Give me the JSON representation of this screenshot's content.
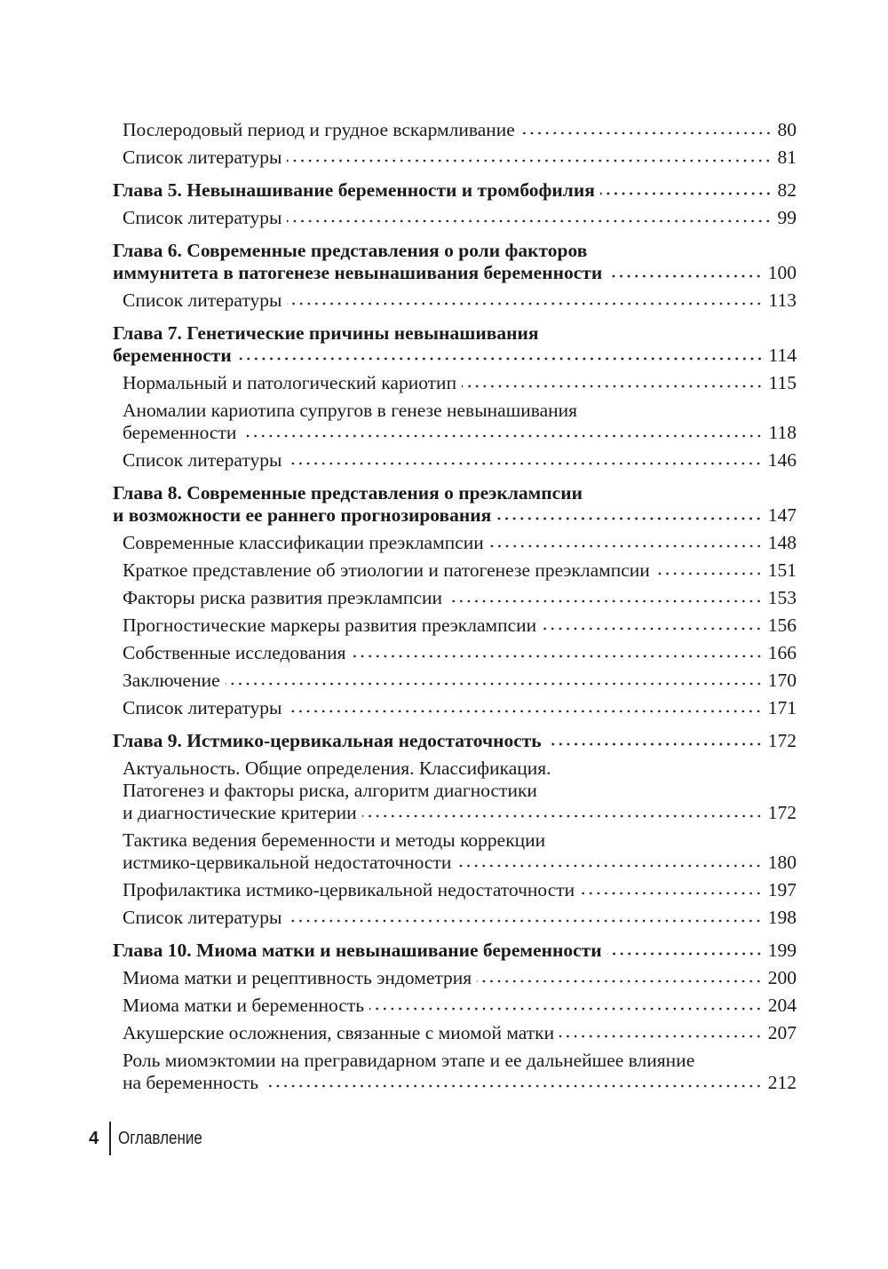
{
  "toc": [
    {
      "level": "sub",
      "lines": [
        "Послеродовый период и грудное вскармливание"
      ],
      "page": "80"
    },
    {
      "level": "sub",
      "lines": [
        "Список литературы"
      ],
      "page": "81"
    },
    {
      "level": "chapter",
      "lines": [
        "Глава 5. Невынашивание беременности и тромбофилия"
      ],
      "page": "82"
    },
    {
      "level": "sub",
      "lines": [
        "Список литературы"
      ],
      "page": "99"
    },
    {
      "level": "chapter",
      "lines": [
        "Глава 6. Современные представления о роли факторов",
        "иммунитета в патогенезе невынашивания беременности"
      ],
      "page": "100"
    },
    {
      "level": "sub",
      "lines": [
        "Список литературы"
      ],
      "page": "113"
    },
    {
      "level": "chapter",
      "lines": [
        "Глава 7. Генетические причины невынашивания",
        "беременности"
      ],
      "page": "114"
    },
    {
      "level": "sub",
      "lines": [
        "Нормальный и патологический кариотип"
      ],
      "page": "115"
    },
    {
      "level": "sub",
      "lines": [
        "Аномалии кариотипа супругов в генезе невынашивания",
        "беременности"
      ],
      "page": "118"
    },
    {
      "level": "sub",
      "lines": [
        "Список литературы"
      ],
      "page": "146"
    },
    {
      "level": "chapter",
      "lines": [
        "Глава 8. Современные представления о преэклампсии",
        "и возможности ее раннего прогнозирования"
      ],
      "page": "147"
    },
    {
      "level": "sub",
      "lines": [
        "Современные классификации преэклампсии"
      ],
      "page": "148"
    },
    {
      "level": "sub",
      "lines": [
        "Краткое представление об этиологии и патогенезе преэклампсии"
      ],
      "page": "151"
    },
    {
      "level": "sub",
      "lines": [
        "Факторы риска развития преэклампсии"
      ],
      "page": "153"
    },
    {
      "level": "sub",
      "lines": [
        "Прогностические маркеры развития преэклампсии"
      ],
      "page": "156"
    },
    {
      "level": "sub",
      "lines": [
        "Собственные исследования"
      ],
      "page": "166"
    },
    {
      "level": "sub",
      "lines": [
        "Заключение"
      ],
      "page": "170"
    },
    {
      "level": "sub",
      "lines": [
        "Список литературы"
      ],
      "page": "171"
    },
    {
      "level": "chapter",
      "lines": [
        "Глава 9. Истмико-цервикальная недостаточность"
      ],
      "page": "172"
    },
    {
      "level": "sub",
      "lines": [
        "Актуальность. Общие определения. Классификация.",
        "Патогенез и факторы риска, алгоритм диагностики",
        "и диагностические критерии"
      ],
      "page": "172"
    },
    {
      "level": "sub",
      "lines": [
        "Тактика ведения беременности и методы коррекции",
        "истмико-цервикальной недостаточности"
      ],
      "page": "180"
    },
    {
      "level": "sub",
      "lines": [
        "Профилактика истмико-цервикальной недостаточности"
      ],
      "page": "197"
    },
    {
      "level": "sub",
      "lines": [
        "Список литературы"
      ],
      "page": "198"
    },
    {
      "level": "chapter",
      "lines": [
        "Глава 10. Миома матки и невынашивание беременности"
      ],
      "page": "199"
    },
    {
      "level": "sub",
      "lines": [
        "Миома матки и рецептивность эндометрия"
      ],
      "page": "200"
    },
    {
      "level": "sub",
      "lines": [
        "Миома матки и беременность"
      ],
      "page": "204"
    },
    {
      "level": "sub",
      "lines": [
        "Акушерские осложнения, связанные с миомой матки"
      ],
      "page": "207"
    },
    {
      "level": "sub",
      "lines": [
        "Роль миомэктомии на прегравидарном этапе и ее дальнейшее влияние",
        "на беременность"
      ],
      "page": "212"
    }
  ],
  "footer": {
    "page_number": "4",
    "section_title": "Оглавление"
  }
}
